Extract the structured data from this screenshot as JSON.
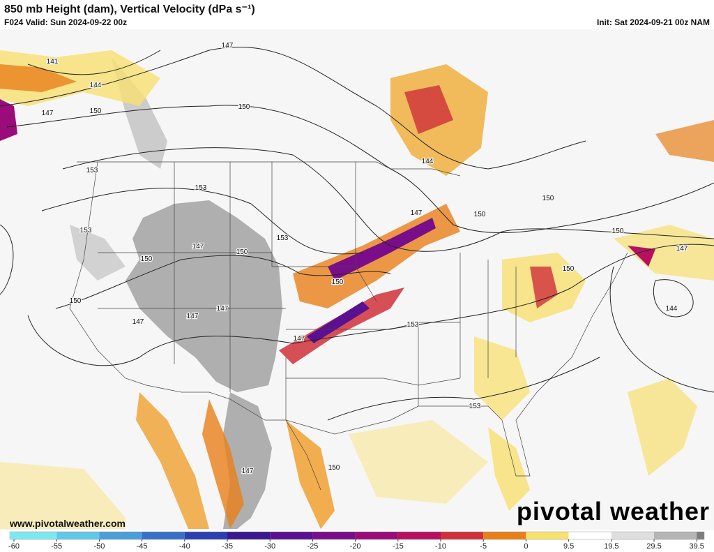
{
  "header": {
    "title": "850 mb Height (dam), Vertical Velocity (dPa s⁻¹)",
    "valid": "F024 Valid: Sun 2024-09-22 00z",
    "init": "Init: Sat 2024-09-21 00z NAM"
  },
  "map": {
    "contour_labels": [
      141,
      144,
      147,
      150,
      147,
      150,
      153,
      153,
      153,
      147,
      150,
      150,
      153,
      150,
      147,
      147,
      147,
      150,
      147,
      144,
      147,
      150,
      150,
      150,
      147,
      150,
      144,
      153,
      153,
      150,
      147
    ]
  },
  "colorbar": {
    "ticks": [
      -60,
      -55,
      -50,
      -45,
      -40,
      -35,
      -30,
      -25,
      -20,
      -15,
      -10,
      -5,
      0,
      9.5,
      19.5,
      29.5,
      39.5
    ],
    "colors": [
      "#7fe8ef",
      "#62c8e8",
      "#4a9fd9",
      "#3a6fc8",
      "#2b3fb0",
      "#3a1890",
      "#5a1090",
      "#7a0e8a",
      "#9a0c7a",
      "#b81060",
      "#d0303a",
      "#e8801a",
      "#f8e070",
      "#ffffff",
      "#dedede",
      "#b5b5b5",
      "#7d7d7d"
    ]
  },
  "footer": {
    "url": "www.pivotalweather.com",
    "brand": "pivotal weather"
  }
}
